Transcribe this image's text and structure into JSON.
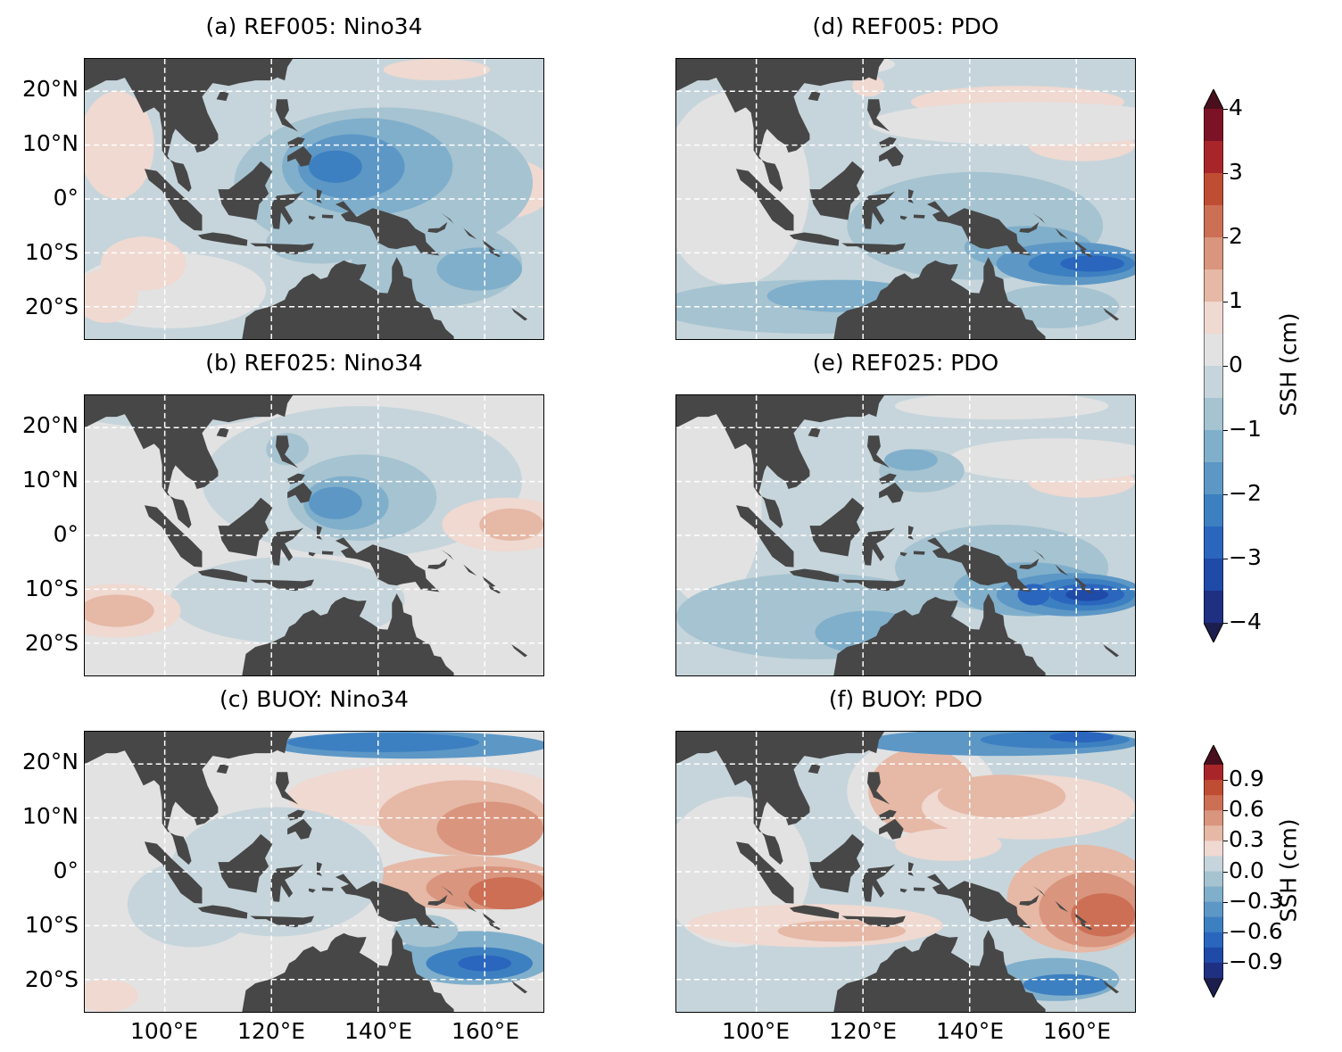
{
  "panels": [
    {
      "id": "a",
      "title": "(a) REF005: Nino34",
      "scheme": "a"
    },
    {
      "id": "b",
      "title": "(b) REF025: Nino34",
      "scheme": "b"
    },
    {
      "id": "c",
      "title": "(c) BUOY: Nino34",
      "scheme": "c"
    },
    {
      "id": "d",
      "title": "(d) REF005: PDO",
      "scheme": "d"
    },
    {
      "id": "e",
      "title": "(e) REF025: PDO",
      "scheme": "e"
    },
    {
      "id": "f",
      "title": "(f) BUOY: PDO",
      "scheme": "f"
    }
  ],
  "axes": {
    "y_ticks": [
      "20°N",
      "10°N",
      "0°",
      "10°S",
      "20°S"
    ],
    "x_ticks": [
      "100°E",
      "120°E",
      "140°E",
      "160°E"
    ]
  },
  "colorbars": [
    {
      "label": "SSH (cm)",
      "ticks": [
        "4",
        "3",
        "2",
        "1",
        "0",
        "−1",
        "−2",
        "−3",
        "−4"
      ],
      "range": [
        -4,
        4
      ]
    },
    {
      "label": "SSH (cm)",
      "ticks": [
        "0.9",
        "0.6",
        "0.3",
        "0.0",
        "−0.3",
        "−0.6",
        "−0.9"
      ],
      "range": [
        -1.05,
        1.05
      ]
    }
  ],
  "colors": {
    "land": "#474747",
    "grid": "#ffffff",
    "cmap": [
      "#1c1f4e",
      "#1f2f82",
      "#1f4aa8",
      "#2a66bd",
      "#3d80c1",
      "#5d97c6",
      "#80afcb",
      "#a6c3d1",
      "#c6d5db",
      "#e2e2e2",
      "#efd9d1",
      "#e6b8a6",
      "#d9957e",
      "#cc6f55",
      "#bf4d34",
      "#a8262a",
      "#7c1225",
      "#4a0f1c"
    ]
  }
}
